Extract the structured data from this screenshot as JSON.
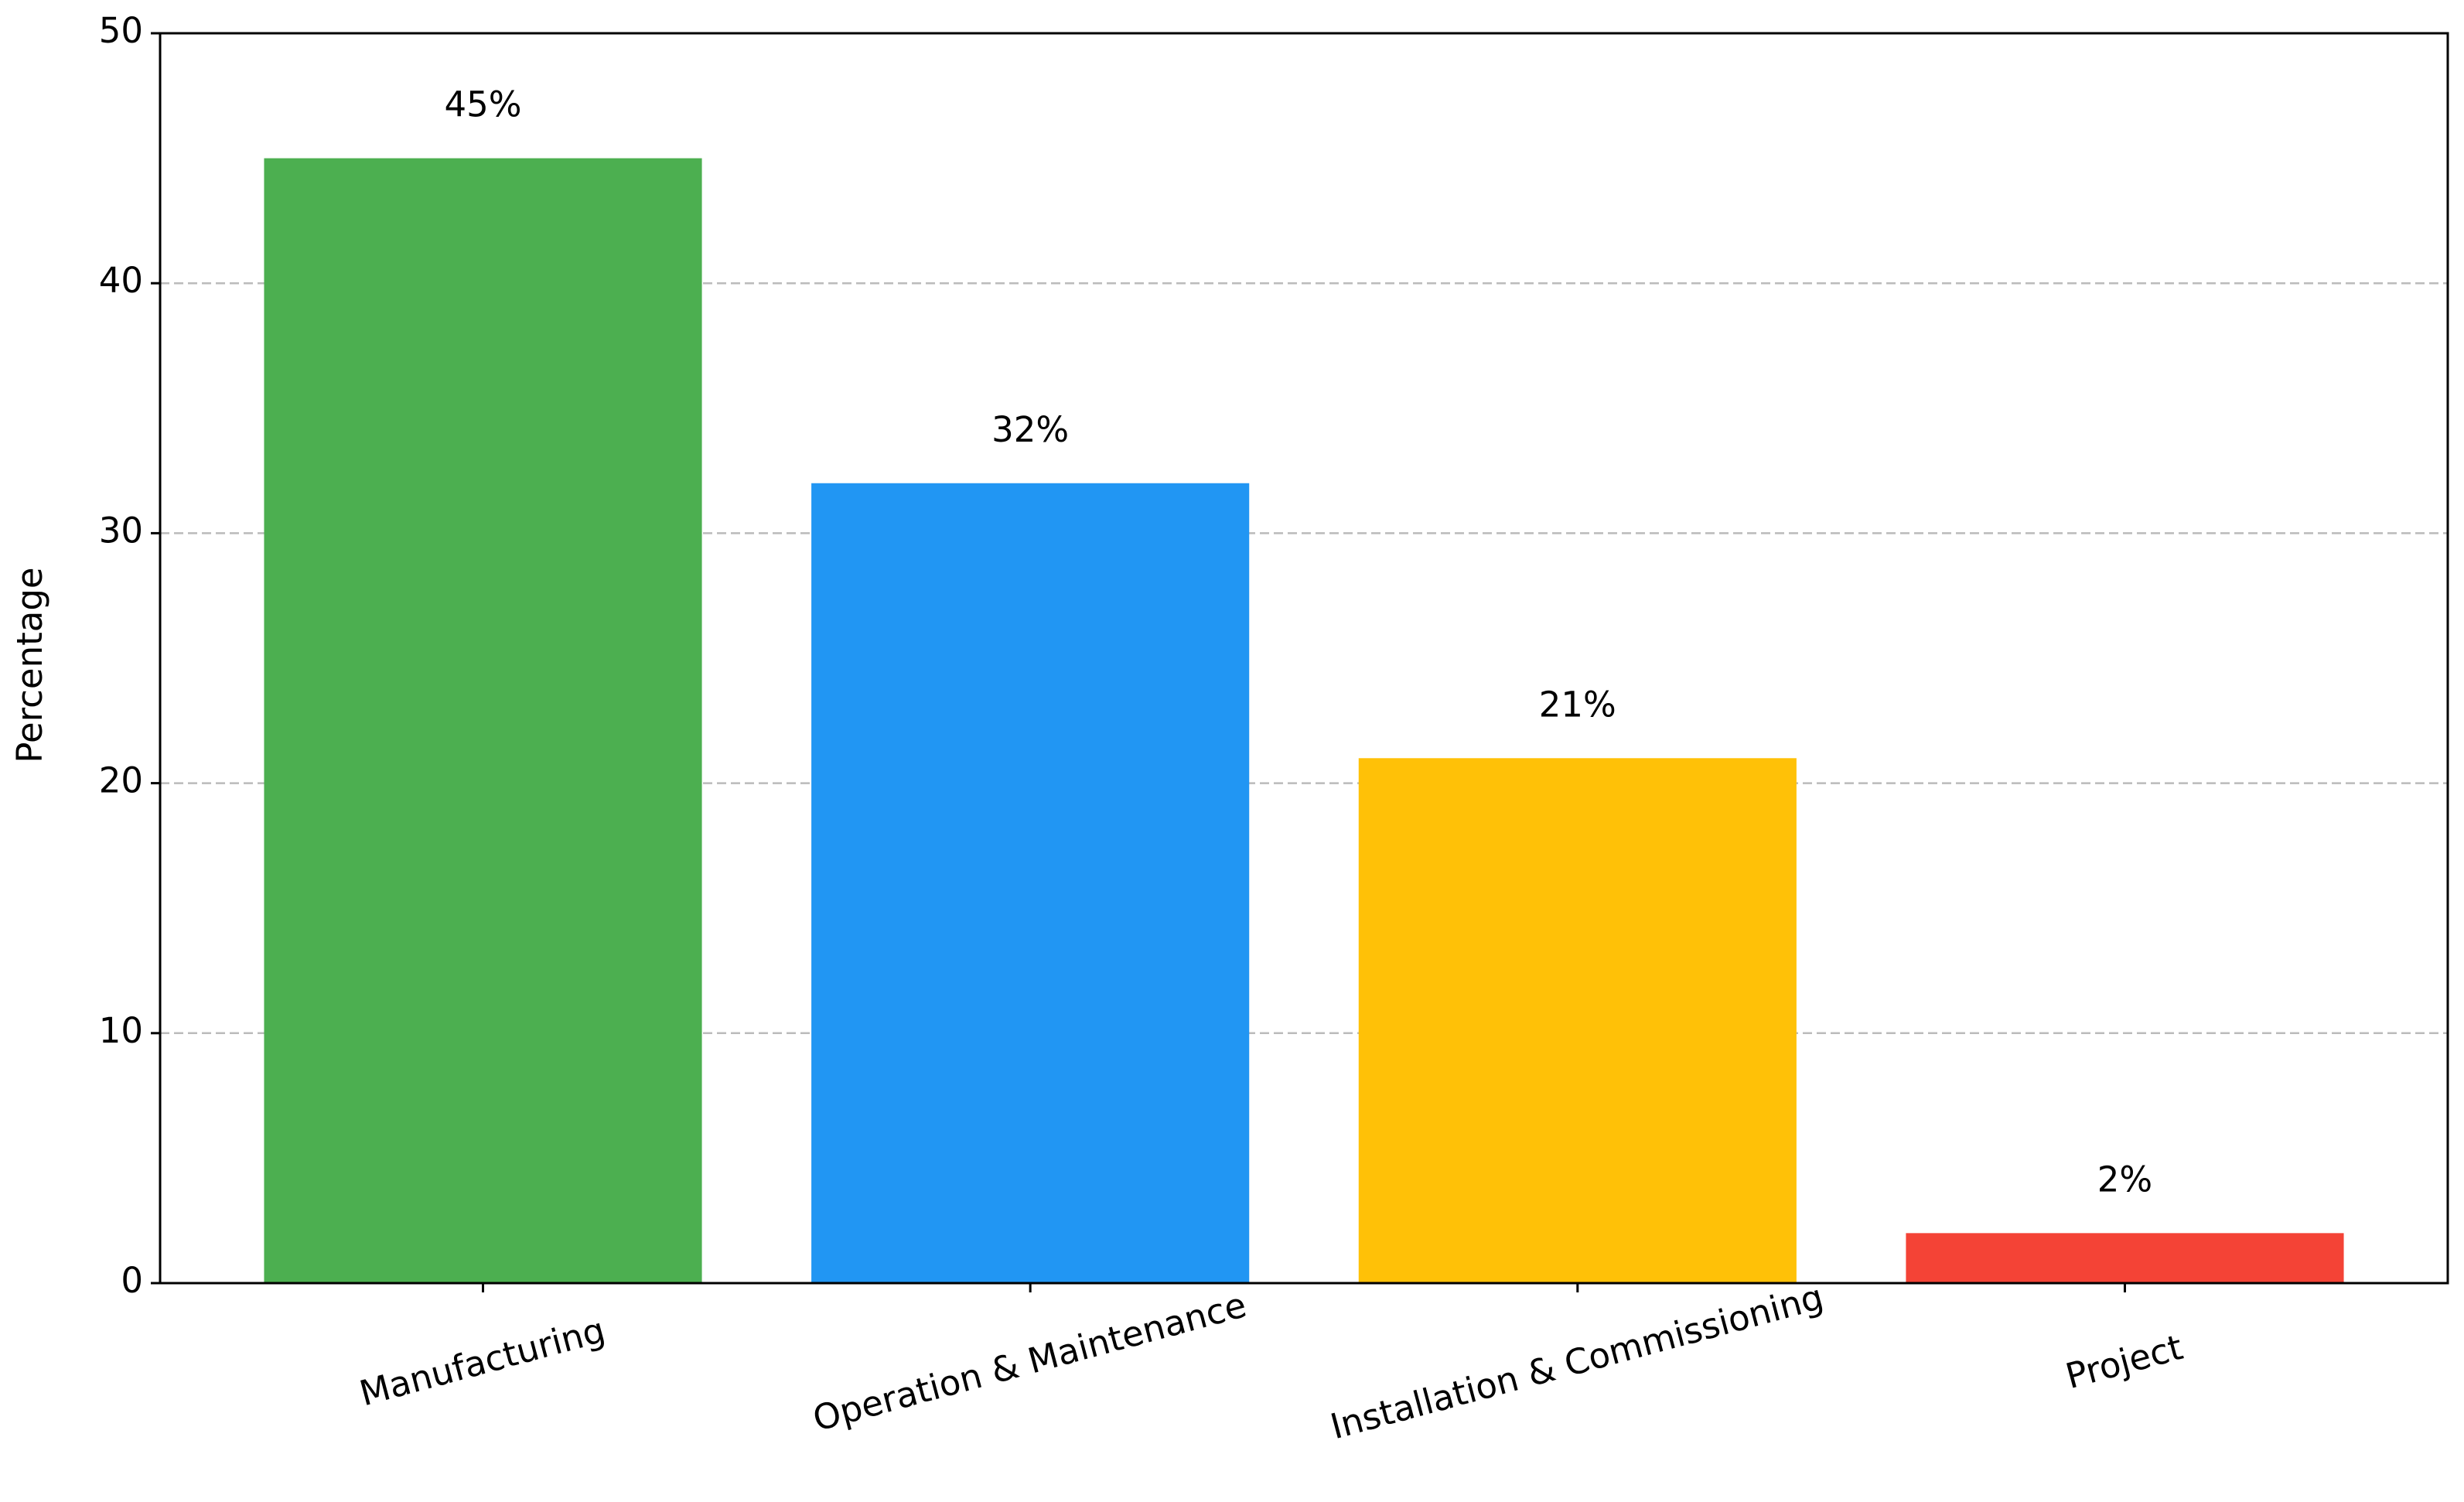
{
  "chart_data": {
    "type": "bar",
    "y_label": "Percentage",
    "categories": [
      "Manufacturing",
      "Operation & Maintenance",
      "Installation & Commissioning",
      "Project"
    ],
    "values": [
      45,
      32,
      21,
      2
    ],
    "value_labels": [
      "45%",
      "32%",
      "21%",
      "2%"
    ],
    "colors": [
      "#4caf50",
      "#2196f3",
      "#ffc107",
      "#f44336"
    ],
    "ylim": [
      0,
      50
    ],
    "yticks": [
      0,
      10,
      20,
      30,
      40,
      50
    ],
    "grid": true
  }
}
